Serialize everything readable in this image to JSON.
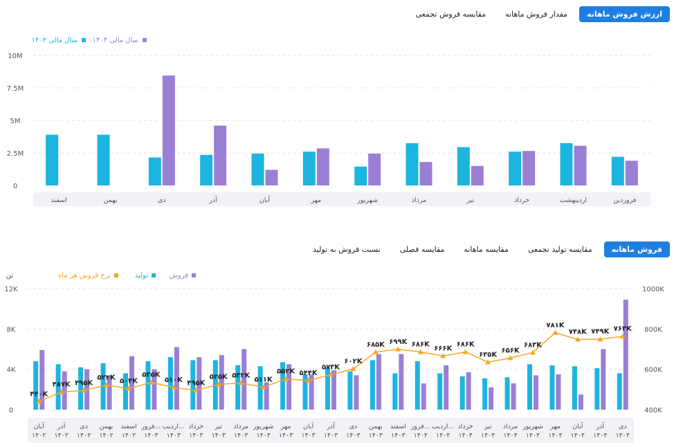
{
  "tabs_top": [
    "ارزش فروش ماهانه",
    "مقدار فروش ماهانه",
    "مقایسه فروش تجمعی"
  ],
  "tabs_bottom": [
    "فروش ماهانه",
    "مقایسه تولید تجمعی",
    "مقایسه ماهانه",
    "مقایسه فصلی",
    "نسبت فروش به تولید"
  ],
  "colors": {
    "accent": "#1f7fe0",
    "cyan": "#1cb5e0",
    "purple": "#9b7fd4",
    "orange": "#f5a623"
  },
  "chart_data": [
    {
      "type": "bar",
      "categories": [
        "فروردین",
        "اردیبهشت",
        "خرداد",
        "تیر",
        "مرداد",
        "شهریور",
        "مهر",
        "آبان",
        "آذر",
        "دی",
        "بهمن",
        "اسفند"
      ],
      "series": [
        {
          "name": "سال مالی ۱۴۰۳",
          "values": [
            2.2,
            3.25,
            2.6,
            2.95,
            3.25,
            1.45,
            2.6,
            2.45,
            2.35,
            2.15,
            3.9,
            3.9
          ]
        },
        {
          "name": "سال مالی ۱۴۰۴",
          "values": [
            1.9,
            3.05,
            2.65,
            1.5,
            1.8,
            2.45,
            2.85,
            1.2,
            4.6,
            8.45,
            null,
            null
          ]
        }
      ],
      "yticks": [
        "0",
        "2.5M",
        "5M",
        "7.5M",
        "10M"
      ],
      "ylim": [
        0,
        10
      ],
      "legend": "top-left"
    },
    {
      "type": "bar",
      "categories": [
        "آبان ۱۴۰۲",
        "آذر ۱۴۰۲",
        "دی ۱۴۰۲",
        "بهمن ۱۴۰۲",
        "اسفند ۱۴۰۲",
        "فرور... ۱۴۰۳",
        "اردیب... ۱۴۰۳",
        "خرداد ۱۴۰۳",
        "تیر ۱۴۰۳",
        "مرداد ۱۴۰۳",
        "شهریور ۱۴۰۳",
        "مهر ۱۴۰۳",
        "آبان ۱۴۰۳",
        "آذر ۱۴۰۳",
        "دی ۱۴۰۳",
        "بهمن ۱۴۰۳",
        "اسفند ۱۴۰۳",
        "فرور... ۱۴۰۴",
        "اردیب... ۱۴۰۴",
        "خرداد ۱۴۰۴",
        "تیر ۱۴۰۴",
        "مرداد ۱۴۰۴",
        "شهریور ۱۴۰۴",
        "مهر ۱۴۰۴",
        "آبان ۱۴۰۴",
        "آذر ۱۴۰۴",
        "دی ۱۴۰۴"
      ],
      "series": [
        {
          "name": "تولید",
          "axis": "left",
          "values": [
            4.8,
            4.5,
            4.2,
            4.6,
            3.6,
            4.8,
            5.2,
            4.9,
            4.9,
            4.4,
            4.3,
            4.7,
            3.5,
            4.2,
            3.8,
            4.9,
            3.6,
            4.8,
            3.6,
            3.3,
            3.1,
            3.2,
            4.5,
            4.4,
            4.3,
            4.1,
            3.6
          ]
        },
        {
          "name": "فروش",
          "axis": "left",
          "values": [
            5.9,
            3.8,
            4.0,
            3.3,
            5.3,
            4.0,
            6.2,
            5.2,
            5.4,
            6.0,
            2.7,
            4.5,
            3.5,
            3.9,
            3.4,
            5.5,
            5.5,
            2.6,
            4.4,
            3.7,
            2.2,
            2.6,
            3.4,
            3.5,
            1.5,
            6.0,
            10.9
          ]
        },
        {
          "name": "نرخ فروش هر ماه",
          "axis": "right",
          "values": [
            440,
            487,
            495,
            522,
            504,
            535,
            510,
            495,
            525,
            532,
            511,
            552,
            544,
            573,
            602,
            685,
            699,
            686,
            666,
            686,
            635,
            656,
            683,
            781,
            748,
            749,
            763
          ]
        }
      ],
      "line_labels": [
        "۴۴۰K",
        "۴۸۷K",
        "۴۹۵K",
        "۵۲۲K",
        "۵۰۴K",
        "۵۳۵K",
        "۵۱۰K",
        "۴۹۵K",
        "۵۲۵K",
        "۵۳۲K",
        "۵۱۱K",
        "۵۵۲K",
        "۵۴۴K",
        "۵۷۳K",
        "۶۰۲K",
        "۶۸۵K",
        "۶۹۹K",
        "۶۸۶K",
        "۶۶۶K",
        "۶۸۶K",
        "۶۳۵K",
        "۶۵۶K",
        "۶۸۳K",
        "۷۸۱K",
        "۷۴۸K",
        "۷۴۹K",
        "۷۶۳K"
      ],
      "yticks_left": [
        "0",
        "4K",
        "8K",
        "12K"
      ],
      "ylim_left": [
        0,
        12
      ],
      "ylabel_left": "تن",
      "yticks_right": [
        "400K",
        "600K",
        "800K",
        "1000K"
      ],
      "ylim_right": [
        400,
        1000
      ],
      "legend": "top-left"
    }
  ]
}
